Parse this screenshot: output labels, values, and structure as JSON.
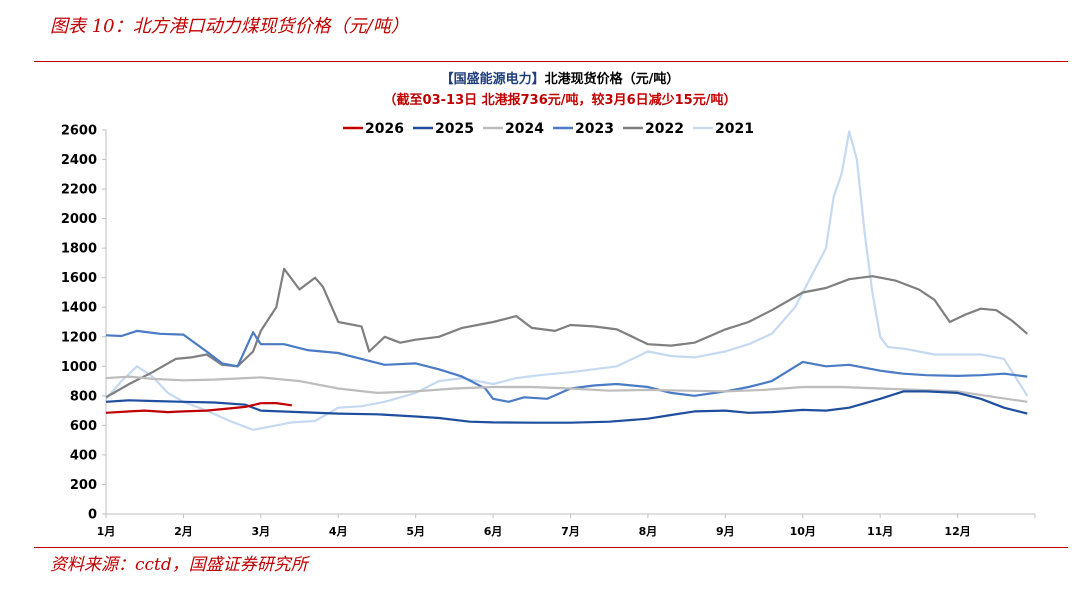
{
  "figure_title": "图表 10：北方港口动力煤现货价格（元/吨）",
  "source": "资料来源：cctd，国盛证券研究所",
  "chart_data": {
    "type": "line",
    "title_brand": "【国盛能源电力】",
    "title_main": "北港现货价格（元/吨）",
    "subtitle": "（截至03-13日  北港报736元/吨，较3月6日减少15元/吨）",
    "ylim": [
      0,
      2600
    ],
    "yticks": [
      0,
      200,
      400,
      600,
      800,
      1000,
      1200,
      1400,
      1600,
      1800,
      2000,
      2200,
      2400,
      2600
    ],
    "xlim": [
      1,
      13
    ],
    "x_tick_labels": [
      "1月",
      "2月",
      "3月",
      "4月",
      "5月",
      "6月",
      "7月",
      "8月",
      "9月",
      "10月",
      "11月",
      "12月"
    ],
    "legend_position": "top",
    "grid": false,
    "series": [
      {
        "name": "2026",
        "color": "#c00000",
        "x": [
          1.0,
          1.3,
          1.5,
          1.8,
          2.0,
          2.3,
          2.5,
          2.8,
          3.0,
          3.2,
          3.4
        ],
        "y": [
          685,
          695,
          700,
          690,
          695,
          700,
          710,
          725,
          750,
          751,
          736
        ]
      },
      {
        "name": "2025",
        "color": "#1f4e9e",
        "x": [
          1.0,
          1.3,
          1.6,
          2.0,
          2.4,
          2.8,
          3.0,
          3.5,
          4.0,
          4.5,
          5.0,
          5.3,
          5.7,
          6.0,
          6.5,
          7.0,
          7.5,
          8.0,
          8.3,
          8.6,
          9.0,
          9.3,
          9.6,
          10.0,
          10.3,
          10.6,
          11.0,
          11.3,
          11.6,
          12.0,
          12.3,
          12.6,
          12.9
        ],
        "y": [
          760,
          770,
          765,
          760,
          755,
          740,
          700,
          690,
          680,
          675,
          660,
          650,
          625,
          620,
          618,
          618,
          625,
          645,
          670,
          695,
          700,
          685,
          690,
          705,
          700,
          720,
          780,
          830,
          830,
          820,
          780,
          720,
          680
        ]
      },
      {
        "name": "2024",
        "color": "#bdbdbd",
        "x": [
          1.0,
          1.3,
          1.6,
          2.0,
          2.4,
          2.8,
          3.0,
          3.5,
          4.0,
          4.5,
          5.0,
          5.5,
          6.0,
          6.5,
          7.0,
          7.5,
          8.0,
          8.5,
          9.0,
          9.5,
          10.0,
          10.5,
          11.0,
          11.5,
          12.0,
          12.5,
          12.9
        ],
        "y": [
          920,
          930,
          915,
          905,
          910,
          920,
          925,
          900,
          850,
          820,
          830,
          850,
          860,
          860,
          850,
          835,
          840,
          835,
          830,
          840,
          860,
          860,
          850,
          840,
          830,
          790,
          760
        ]
      },
      {
        "name": "2023",
        "color": "#4a7bc4",
        "x": [
          1.0,
          1.2,
          1.4,
          1.7,
          2.0,
          2.3,
          2.5,
          2.7,
          2.9,
          3.0,
          3.3,
          3.6,
          4.0,
          4.3,
          4.6,
          5.0,
          5.3,
          5.6,
          5.9,
          6.0,
          6.2,
          6.4,
          6.7,
          7.0,
          7.3,
          7.6,
          8.0,
          8.3,
          8.6,
          9.0,
          9.3,
          9.6,
          10.0,
          10.3,
          10.6,
          11.0,
          11.3,
          11.6,
          12.0,
          12.3,
          12.6,
          12.9
        ],
        "y": [
          1210,
          1205,
          1240,
          1220,
          1215,
          1100,
          1020,
          1000,
          1230,
          1150,
          1150,
          1110,
          1090,
          1050,
          1010,
          1020,
          980,
          930,
          850,
          780,
          760,
          790,
          780,
          850,
          870,
          880,
          860,
          820,
          800,
          830,
          860,
          900,
          1030,
          1000,
          1010,
          970,
          950,
          940,
          935,
          940,
          950,
          930
        ]
      },
      {
        "name": "2022",
        "color": "#7f7f7f",
        "x": [
          1.0,
          1.3,
          1.6,
          1.9,
          2.1,
          2.3,
          2.5,
          2.7,
          2.9,
          3.0,
          3.2,
          3.3,
          3.5,
          3.7,
          3.8,
          4.0,
          4.3,
          4.4,
          4.6,
          4.8,
          5.0,
          5.3,
          5.6,
          6.0,
          6.3,
          6.5,
          6.8,
          7.0,
          7.3,
          7.6,
          8.0,
          8.3,
          8.6,
          9.0,
          9.3,
          9.6,
          10.0,
          10.3,
          10.6,
          10.9,
          11.2,
          11.5,
          11.7,
          11.9,
          12.1,
          12.3,
          12.5,
          12.7,
          12.9
        ],
        "y": [
          790,
          880,
          960,
          1050,
          1060,
          1080,
          1010,
          1000,
          1100,
          1240,
          1400,
          1660,
          1520,
          1600,
          1540,
          1300,
          1270,
          1100,
          1200,
          1160,
          1180,
          1200,
          1260,
          1300,
          1340,
          1260,
          1240,
          1280,
          1270,
          1250,
          1150,
          1140,
          1160,
          1250,
          1300,
          1380,
          1500,
          1530,
          1590,
          1610,
          1580,
          1520,
          1450,
          1300,
          1350,
          1390,
          1380,
          1310,
          1220
        ]
      },
      {
        "name": "2021",
        "color": "#c5d9f1",
        "x": [
          1.0,
          1.2,
          1.4,
          1.6,
          1.8,
          2.0,
          2.3,
          2.6,
          2.9,
          3.1,
          3.4,
          3.7,
          4.0,
          4.3,
          4.6,
          5.0,
          5.3,
          5.6,
          6.0,
          6.3,
          6.6,
          7.0,
          7.3,
          7.6,
          8.0,
          8.3,
          8.6,
          9.0,
          9.3,
          9.6,
          9.9,
          10.1,
          10.3,
          10.4,
          10.5,
          10.6,
          10.7,
          10.8,
          10.9,
          11.0,
          11.1,
          11.3,
          11.5,
          11.7,
          12.0,
          12.3,
          12.6,
          12.9
        ],
        "y": [
          780,
          900,
          1000,
          930,
          820,
          760,
          700,
          630,
          570,
          590,
          620,
          630,
          720,
          730,
          760,
          820,
          900,
          920,
          880,
          920,
          940,
          960,
          980,
          1000,
          1100,
          1070,
          1060,
          1100,
          1150,
          1220,
          1400,
          1600,
          1800,
          2150,
          2300,
          2590,
          2400,
          1900,
          1500,
          1200,
          1130,
          1120,
          1100,
          1080,
          1080,
          1080,
          1050,
          800
        ]
      }
    ]
  }
}
